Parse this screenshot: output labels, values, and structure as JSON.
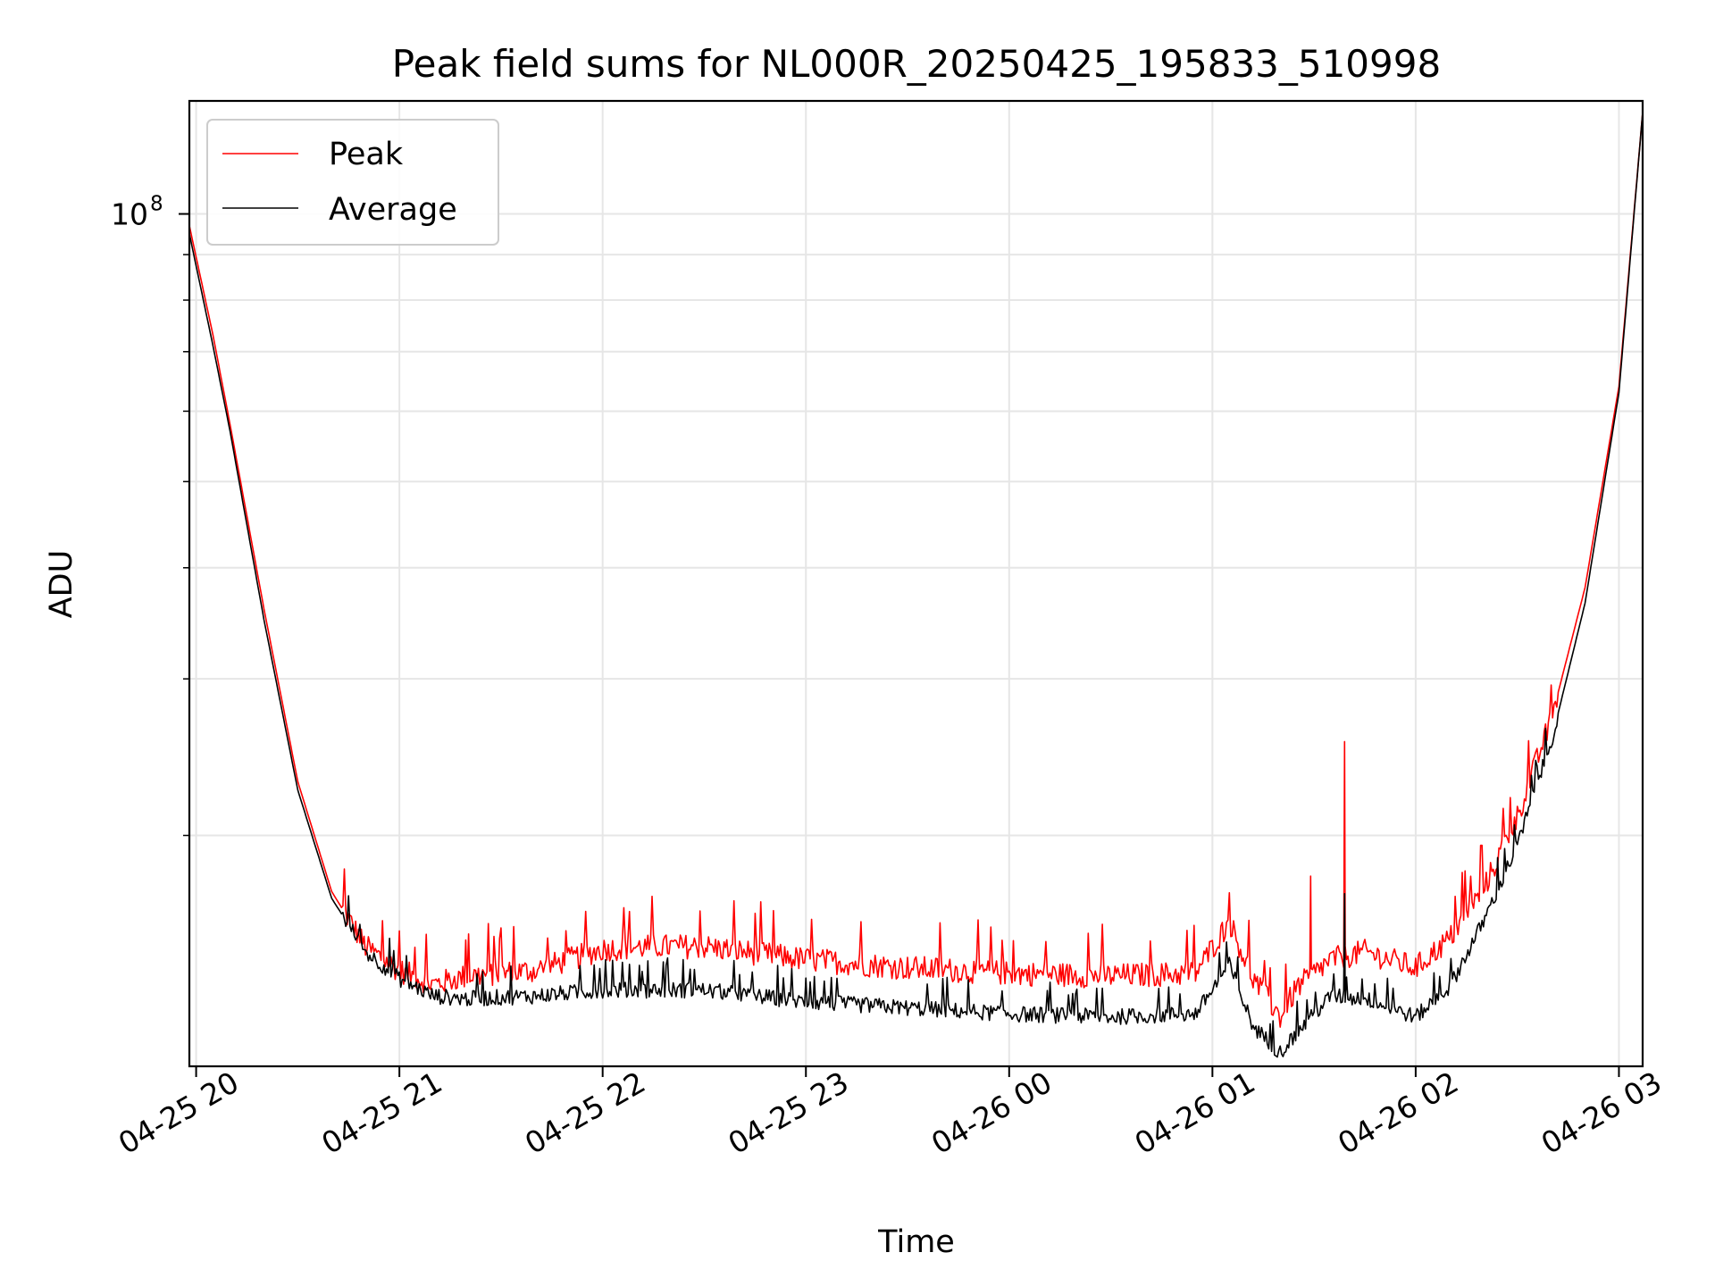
{
  "chart_data": {
    "type": "line",
    "title": "Peak field sums for NL000R_20250425_195833_510998",
    "xlabel": "Time",
    "ylabel": "ADU",
    "yscale": "log",
    "grid": true,
    "legend_position": "top-left",
    "xlim": [
      "2025-04-25 19:58",
      "2025-04-26 03:07"
    ],
    "ylim": [
      11000000,
      134000000
    ],
    "x_ticks": [
      {
        "x": "2025-04-25 20:00",
        "label": "04-25 20"
      },
      {
        "x": "2025-04-25 21:00",
        "label": "04-25 21"
      },
      {
        "x": "2025-04-25 22:00",
        "label": "04-25 22"
      },
      {
        "x": "2025-04-25 23:00",
        "label": "04-25 23"
      },
      {
        "x": "2025-04-26 00:00",
        "label": "04-26 00"
      },
      {
        "x": "2025-04-26 01:00",
        "label": "04-26 01"
      },
      {
        "x": "2025-04-26 02:00",
        "label": "04-26 02"
      },
      {
        "x": "2025-04-26 03:00",
        "label": "04-26 03"
      }
    ],
    "y_major_ticks": [
      {
        "y": 100000000,
        "base": "10",
        "exp": "8"
      }
    ],
    "y_minor_ticks": [
      20000000,
      30000000,
      40000000,
      50000000,
      60000000,
      70000000,
      80000000,
      90000000
    ],
    "x_times": [
      "2025-04-25 19:58",
      "2025-04-25 20:05",
      "2025-04-25 20:10",
      "2025-04-25 20:20",
      "2025-04-25 20:30",
      "2025-04-25 20:40",
      "2025-04-25 20:50",
      "2025-04-25 21:00",
      "2025-04-25 21:10",
      "2025-04-25 21:20",
      "2025-04-25 21:40",
      "2025-04-25 22:00",
      "2025-04-25 22:15",
      "2025-04-25 22:30",
      "2025-04-25 23:00",
      "2025-04-25 23:30",
      "2025-04-26 00:00",
      "2025-04-26 00:30",
      "2025-04-26 00:55",
      "2025-04-26 01:05",
      "2025-04-26 01:12",
      "2025-04-26 01:20",
      "2025-04-26 01:25",
      "2025-04-26 01:35",
      "2025-04-26 01:45",
      "2025-04-26 02:00",
      "2025-04-26 02:10",
      "2025-04-26 02:20",
      "2025-04-26 02:30",
      "2025-04-26 02:40",
      "2025-04-26 02:50",
      "2025-04-26 03:00",
      "2025-04-26 03:07"
    ],
    "series": [
      {
        "name": "Peak",
        "color": "#ff0000",
        "values": [
          97000000,
          73000000,
          58000000,
          36000000,
          23000000,
          17300000,
          15000000,
          14100000,
          13600000,
          13900000,
          14100000,
          14900000,
          15000000,
          15000000,
          14500000,
          14200000,
          14000000,
          13900000,
          14000000,
          16000000,
          13800000,
          12500000,
          13500000,
          14500000,
          14800000,
          14200000,
          15300000,
          17400000,
          21000000,
          27000000,
          38000000,
          64000000,
          130000000
        ]
      },
      {
        "name": "Average",
        "color": "#000000",
        "values": [
          95000000,
          71000000,
          57000000,
          35000000,
          22500000,
          17000000,
          14800000,
          13800000,
          13200000,
          13100000,
          13200000,
          13400000,
          13400000,
          13400000,
          13000000,
          12800000,
          12600000,
          12500000,
          12600000,
          14300000,
          12200000,
          11400000,
          12000000,
          13200000,
          13100000,
          12500000,
          13500000,
          16000000,
          19500000,
          25500000,
          36500000,
          63000000,
          130000000
        ]
      }
    ],
    "annotations_spikes": [
      {
        "series": "Peak",
        "x": "2025-04-26 01:29",
        "y": 18000000
      },
      {
        "series": "Peak",
        "x": "2025-04-26 01:39",
        "y": 25500000
      },
      {
        "series": "Average",
        "x": "2025-04-26 01:39",
        "y": 17200000
      }
    ]
  }
}
